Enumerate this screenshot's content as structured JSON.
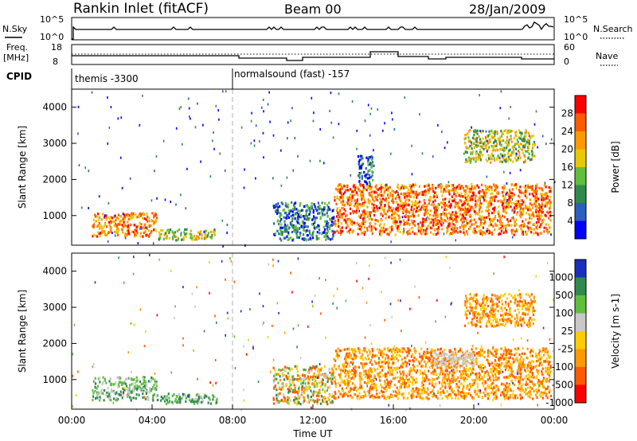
{
  "header": {
    "station": "Rankin Inlet (fitACF)",
    "beam": "Beam 00",
    "date": "28/Jan/2009"
  },
  "strip_labels": {
    "nsky": "N.Sky",
    "nsearch": "N.Search",
    "freq_line1": "Freq.",
    "freq_line2": "[MHz]",
    "nave": "Nave",
    "cpid": "CPID",
    "nsky_ticks": [
      "10^5",
      "10^0"
    ],
    "nsearch_ticks": [
      "10^5",
      "10^0"
    ],
    "freq_ticks": [
      "18",
      "8"
    ],
    "nave_ticks": [
      "60",
      "0"
    ]
  },
  "cpid_segments": [
    {
      "label": "themis -3300",
      "start_hour": 0.0
    },
    {
      "label": "normalsound (fast) -157",
      "start_hour": 8.0
    }
  ],
  "x_axis": {
    "label": "Time UT",
    "ticks": [
      "00:00",
      "04:00",
      "08:00",
      "12:00",
      "16:00",
      "20:00",
      "00:00"
    ]
  },
  "chart_data": [
    {
      "type": "heatmap",
      "panel": "power",
      "xlabel": "Time UT",
      "ylabel": "Slant Range [km]",
      "xlim": [
        0,
        24
      ],
      "ylim": [
        180,
        4500
      ],
      "y_ticks": [
        1000,
        2000,
        3000,
        4000
      ],
      "colorbar": {
        "label": "Power [dB]",
        "ticks": [
          "28",
          "24",
          "20",
          "16",
          "12",
          "8",
          "4"
        ],
        "colors": [
          "#ff0000",
          "#ff5a00",
          "#ff9900",
          "#e8c800",
          "#5fbf3a",
          "#2f8a4e",
          "#2a5fbf",
          "#0000ff"
        ]
      },
      "regions": [
        {
          "t": [
            1.0,
            4.2
          ],
          "r": [
            450,
            1100
          ],
          "level": "strong"
        },
        {
          "t": [
            4.2,
            7.2
          ],
          "r": [
            350,
            650
          ],
          "level": "medium"
        },
        {
          "t": [
            10.0,
            13.0
          ],
          "r": [
            350,
            1400
          ],
          "level": "weak"
        },
        {
          "t": [
            13.0,
            23.8
          ],
          "r": [
            500,
            1900
          ],
          "level": "strong"
        },
        {
          "t": [
            19.5,
            23.0
          ],
          "r": [
            2500,
            3400
          ],
          "level": "medium"
        },
        {
          "t": [
            14.2,
            15.0
          ],
          "r": [
            1900,
            2700
          ],
          "level": "weak"
        }
      ]
    },
    {
      "type": "heatmap",
      "panel": "velocity",
      "xlabel": "Time UT",
      "ylabel": "Slant Range [km]",
      "xlim": [
        0,
        24
      ],
      "ylim": [
        180,
        4500
      ],
      "y_ticks": [
        1000,
        2000,
        3000,
        4000
      ],
      "colorbar": {
        "label": "Velocity [m s-1]",
        "ticks": [
          "1000",
          "500",
          "100",
          "25",
          "-25",
          "-100",
          "-500",
          "-1000"
        ],
        "colors": [
          "#1a2fbf",
          "#2f8a4e",
          "#5fbf3a",
          "#c8c8c8",
          "#ffcc00",
          "#ff9900",
          "#ff5a00",
          "#ff0000"
        ]
      },
      "regions": [
        {
          "t": [
            1.0,
            4.2
          ],
          "r": [
            450,
            1100
          ],
          "level": "positive"
        },
        {
          "t": [
            4.2,
            7.2
          ],
          "r": [
            350,
            650
          ],
          "level": "positive"
        },
        {
          "t": [
            10.0,
            13.0
          ],
          "r": [
            350,
            1400
          ],
          "level": "mixed"
        },
        {
          "t": [
            13.0,
            23.8
          ],
          "r": [
            500,
            1900
          ],
          "level": "negative"
        },
        {
          "t": [
            19.5,
            23.0
          ],
          "r": [
            2500,
            3400
          ],
          "level": "negative"
        },
        {
          "t": [
            18.0,
            20.0
          ],
          "r": [
            1400,
            1800
          ],
          "level": "ground"
        }
      ]
    }
  ]
}
